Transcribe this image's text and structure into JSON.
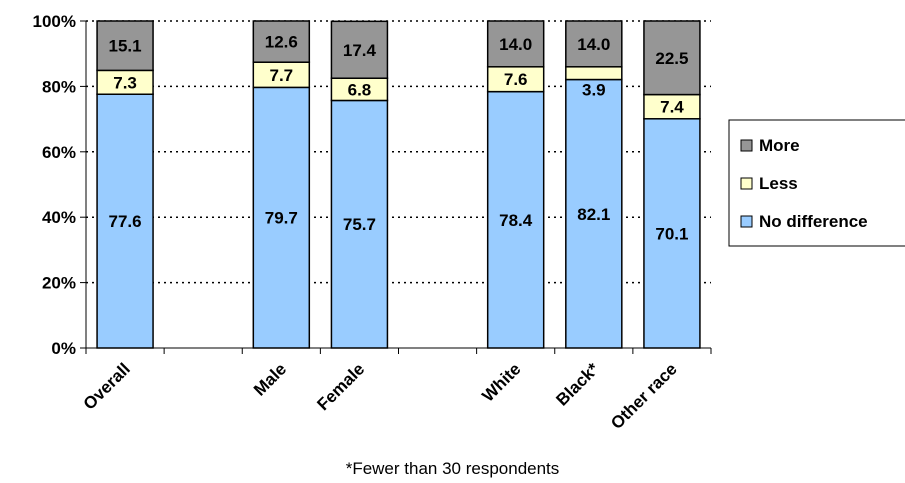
{
  "chart_data": {
    "type": "bar",
    "stacked": true,
    "title": "",
    "xlabel": "",
    "ylabel": "",
    "ylim": [
      0,
      100
    ],
    "yticks": [
      "0%",
      "20%",
      "40%",
      "60%",
      "80%",
      "100%"
    ],
    "grid": "dotted horizontal",
    "legend_position": "right",
    "categories": [
      "Overall",
      "",
      "Male",
      "Female",
      "",
      "White",
      "Black*",
      "Other race"
    ],
    "series": [
      {
        "name": "No difference",
        "color": "#99ccff",
        "values": [
          77.6,
          null,
          79.7,
          75.7,
          null,
          78.4,
          82.1,
          70.1
        ],
        "labels": [
          "77.6",
          "",
          "79.7",
          "75.7",
          "",
          "78.4",
          "82.1",
          "70.1"
        ]
      },
      {
        "name": "Less",
        "color": "#ffffcc",
        "values": [
          7.3,
          null,
          7.7,
          6.8,
          null,
          7.6,
          3.9,
          7.4
        ],
        "labels": [
          "7.3",
          "",
          "7.7",
          "6.8",
          "",
          "7.6",
          "3.9",
          "7.4"
        ]
      },
      {
        "name": "More",
        "color": "#969696",
        "values": [
          15.1,
          null,
          12.6,
          17.4,
          null,
          14.0,
          14.0,
          22.5
        ],
        "labels": [
          "15.1",
          "",
          "12.6",
          "17.4",
          "",
          "14.0",
          "14.0",
          "22.5"
        ]
      }
    ],
    "legend_order": [
      "More",
      "Less",
      "No difference"
    ],
    "footnote": "*Fewer than 30 respondents"
  }
}
